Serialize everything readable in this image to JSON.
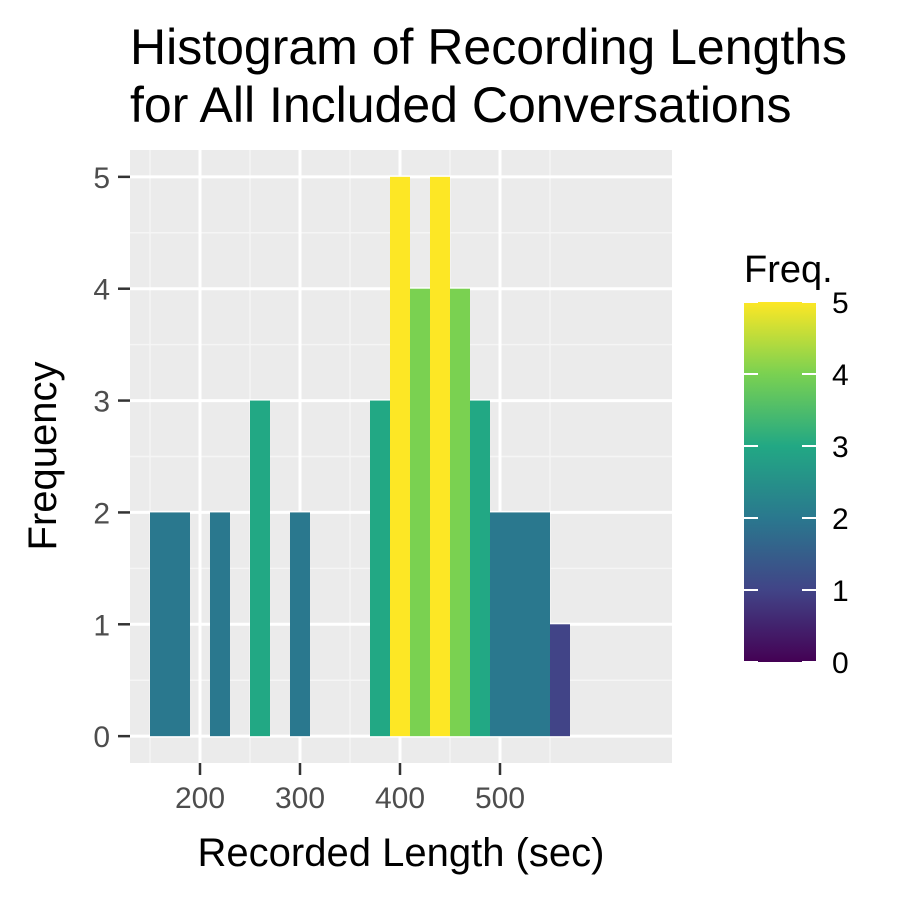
{
  "chart_data": {
    "type": "bar",
    "title_lines": [
      "Histogram of Recording Lengths",
      "for All Included Conversations"
    ],
    "xlabel": "Recorded Length (sec)",
    "ylabel": "Frequency",
    "xlim": [
      130,
      672
    ],
    "ylim": [
      -0.24,
      5.24
    ],
    "x_ticks": [
      200,
      300,
      400,
      500
    ],
    "y_ticks": [
      0,
      1,
      2,
      3,
      4,
      5
    ],
    "grid": true,
    "bin_width": 20,
    "bins": [
      {
        "start": 150,
        "end": 170,
        "count": 2
      },
      {
        "start": 170,
        "end": 190,
        "count": 2
      },
      {
        "start": 190,
        "end": 210,
        "count": 0
      },
      {
        "start": 210,
        "end": 230,
        "count": 2
      },
      {
        "start": 230,
        "end": 250,
        "count": 0
      },
      {
        "start": 250,
        "end": 270,
        "count": 3
      },
      {
        "start": 270,
        "end": 290,
        "count": 0
      },
      {
        "start": 290,
        "end": 310,
        "count": 2
      },
      {
        "start": 310,
        "end": 330,
        "count": 0
      },
      {
        "start": 330,
        "end": 350,
        "count": 0
      },
      {
        "start": 350,
        "end": 370,
        "count": 0
      },
      {
        "start": 370,
        "end": 390,
        "count": 3
      },
      {
        "start": 390,
        "end": 410,
        "count": 5
      },
      {
        "start": 410,
        "end": 430,
        "count": 4
      },
      {
        "start": 430,
        "end": 450,
        "count": 5
      },
      {
        "start": 450,
        "end": 470,
        "count": 4
      },
      {
        "start": 470,
        "end": 490,
        "count": 3
      },
      {
        "start": 490,
        "end": 510,
        "count": 2
      },
      {
        "start": 510,
        "end": 530,
        "count": 2
      },
      {
        "start": 530,
        "end": 550,
        "count": 2
      },
      {
        "start": 550,
        "end": 570,
        "count": 1
      }
    ],
    "fill_by": "count",
    "legend": {
      "title": "Freq.",
      "placement": "right",
      "min": 0,
      "max": 5,
      "labels": [
        "0",
        "1",
        "2",
        "3",
        "4",
        "5"
      ],
      "palette": [
        "#440154",
        "#414487",
        "#2a788e",
        "#22a884",
        "#7ad151",
        "#fde725"
      ]
    },
    "colors": {
      "panel_background": "#ebebeb",
      "grid_major": "#ffffff",
      "grid_minor": "#f5f5f5"
    }
  }
}
